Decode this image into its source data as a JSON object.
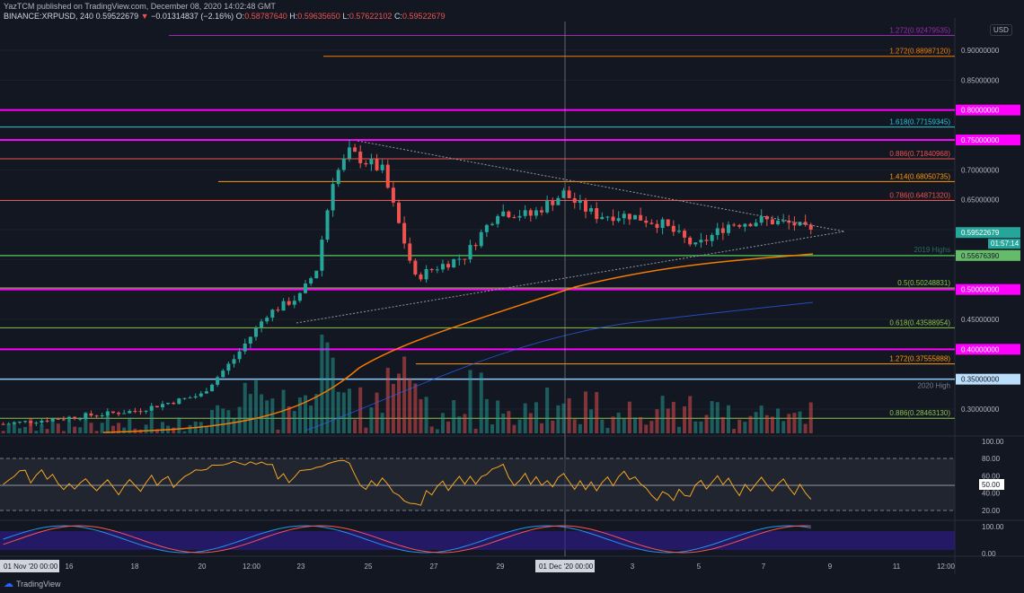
{
  "header": {
    "publisher": "YazTCM published on TradingView.com, December 08, 2020 14:02:48 GMT",
    "symbol": "BINANCE:XRPUSD, 240",
    "last": "0.59522679",
    "change": "−0.01314837 (−2.16%)",
    "o_label": "O:",
    "o": "0.58787640",
    "h_label": "H:",
    "h": "0.59635650",
    "l_label": "L:",
    "l": "0.57622102",
    "c_label": "C:",
    "c": "0.59522679",
    "direction_icon": "down-triangle"
  },
  "currency": "USD",
  "price_axis": [
    "0.90000000",
    "0.85000000",
    "0.70000000",
    "0.65000000",
    "0.45000000",
    "0.30000000"
  ],
  "price_badges": {
    "last": "0.59522679",
    "countdown": "01:57:14",
    "level_2019": "0.55676390",
    "m80": "0.80000000",
    "m75": "0.75000000",
    "m50": "0.50000000",
    "m40": "0.40000000",
    "h2020": "0.35000000"
  },
  "level_notes": {
    "highs2019": "2019 Highs",
    "high2020": "2020 High"
  },
  "fib_levels": [
    {
      "label": "1.272(0.92479535)",
      "value": 0.92479535,
      "color": "#9c27b0"
    },
    {
      "label": "1.272(0.88987120)",
      "value": 0.8898712,
      "color": "#f57c00"
    },
    {
      "label": "1.618(0.77159345)",
      "value": 0.77159345,
      "color": "#26c6da"
    },
    {
      "label": "0.886(0.71840968)",
      "value": 0.71840968,
      "color": "#ef5350"
    },
    {
      "label": "1.414(0.68050735)",
      "value": 0.68050735,
      "color": "#ff9800"
    },
    {
      "label": "0.786(0.64871320)",
      "value": 0.6487132,
      "color": "#ef5350"
    },
    {
      "label": "0.5(0.50248831)",
      "value": 0.50248831,
      "color": "#8bc34a"
    },
    {
      "label": "0.618(0.43588954)",
      "value": 0.43588954,
      "color": "#8bc34a"
    },
    {
      "label": "1.272(0.37555888)",
      "value": 0.37555888,
      "color": "#ff9800"
    },
    {
      "label": "0.886(0.28463130)",
      "value": 0.2846313,
      "color": "#8bc34a"
    }
  ],
  "horizontal_levels": [
    {
      "value": 0.8,
      "color": "#ff00ff"
    },
    {
      "value": 0.75,
      "color": "#ff00ff"
    },
    {
      "value": 0.5567639,
      "color": "#4caf50"
    },
    {
      "value": 0.5,
      "color": "#ff00ff"
    },
    {
      "value": 0.4,
      "color": "#ff00ff"
    },
    {
      "value": 0.35,
      "color": "#90caf9"
    }
  ],
  "rsi_axis": [
    "100.00",
    "80.00",
    "60.00",
    "50.00",
    "40.00",
    "20.00"
  ],
  "stoch_axis": [
    "100.00",
    "0.00"
  ],
  "time_axis": [
    "16",
    "18",
    "20",
    "12:00",
    "23",
    "25",
    "27",
    "29",
    "3",
    "5",
    "7",
    "9",
    "11",
    "12:00"
  ],
  "time_badges": {
    "left": "01 Nov '20  00:00",
    "cursor": "01 Dec '20  00:00"
  },
  "footer": {
    "brand": "TradingView"
  },
  "chart_data": {
    "type": "candlestick",
    "symbol": "XRPUSD",
    "interval": "240",
    "ylim": [
      0.26,
      0.94
    ],
    "approx_closes": [
      [
        "2020-11-14",
        0.275
      ],
      [
        "2020-11-18",
        0.297
      ],
      [
        "2020-11-20",
        0.324
      ],
      [
        "2020-11-21",
        0.384
      ],
      [
        "2020-11-22",
        0.459
      ],
      [
        "2020-11-23",
        0.489
      ],
      [
        "2020-11-23T12",
        0.534
      ],
      [
        "2020-11-24",
        0.684
      ],
      [
        "2020-11-24T12",
        0.729
      ],
      [
        "2020-11-25",
        0.714
      ],
      [
        "2020-11-25T12",
        0.699
      ],
      [
        "2020-11-26",
        0.609
      ],
      [
        "2020-11-26T12",
        0.519
      ],
      [
        "2020-11-27",
        0.534
      ],
      [
        "2020-11-28",
        0.556
      ],
      [
        "2020-11-29",
        0.631
      ],
      [
        "2020-11-30",
        0.624
      ],
      [
        "2020-12-01",
        0.661
      ],
      [
        "2020-12-01T12",
        0.639
      ],
      [
        "2020-12-02",
        0.624
      ],
      [
        "2020-12-03",
        0.624
      ],
      [
        "2020-12-04",
        0.609
      ],
      [
        "2020-12-05",
        0.571
      ],
      [
        "2020-12-06",
        0.609
      ],
      [
        "2020-12-07",
        0.616
      ],
      [
        "2020-12-08",
        0.609
      ],
      [
        "2020-12-08T12",
        0.595
      ]
    ],
    "colors": {
      "up": "#26a69a",
      "down": "#ef5350",
      "sma_orange": "#f57c00",
      "sma_blue": "#2962ff"
    }
  }
}
